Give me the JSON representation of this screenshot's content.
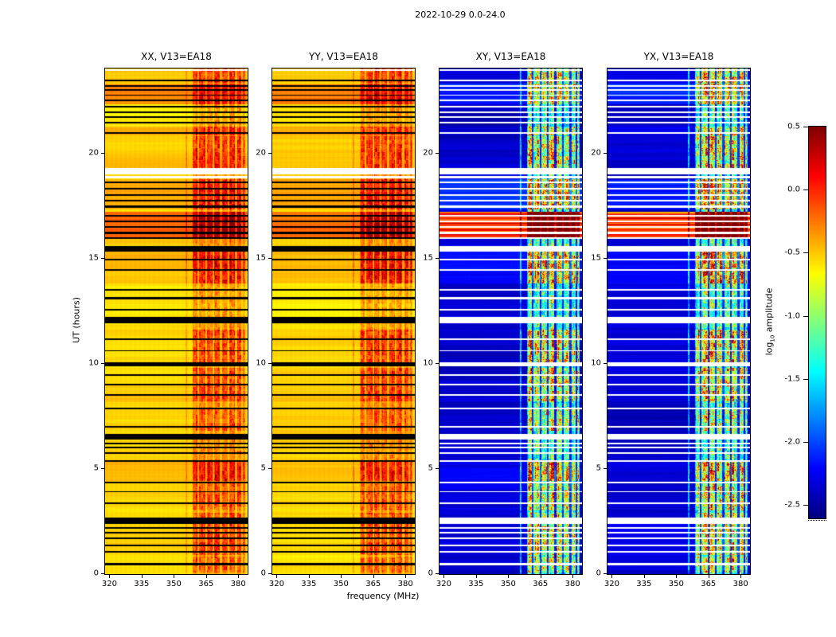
{
  "title": "2022-10-29 0.0-24.0",
  "axes": {
    "xlabel": "frequency (MHz)",
    "ylabel": "UT (hours)",
    "x_ticks": [
      "320",
      "335",
      "350",
      "365",
      "380"
    ],
    "x_tick_values": [
      320,
      335,
      350,
      365,
      380
    ],
    "y_ticks": [
      "0",
      "5",
      "10",
      "15",
      "20"
    ],
    "y_tick_values": [
      0,
      5,
      10,
      15,
      20
    ],
    "x_range": [
      318,
      384
    ],
    "y_range": [
      0,
      24
    ]
  },
  "colorbar": {
    "label_pre": "log",
    "label_sub": "10",
    "label_post": " amplitude",
    "tick_labels": [
      "0.5",
      "0.0",
      "-0.5",
      "-1.0",
      "-1.5",
      "-2.0",
      "-2.5"
    ],
    "tick_values": [
      0.5,
      0,
      -0.5,
      -1,
      -1.5,
      -2,
      -2.5
    ],
    "vmin": -2.6,
    "vmax": 0.5
  },
  "chart_data": {
    "type": "heatmap",
    "description": "Four dynamic spectra (UT hours vs frequency MHz) of log10 visibility amplitude for polarisation products XX, YY, XY, YX of V13=EA18 on 2022-10-29 0.0-24.0; jet colormap, RFI band near 358-383 MHz, many flagged time rows.",
    "x_axis": {
      "label": "frequency (MHz)",
      "range": [
        318,
        384
      ]
    },
    "y_axis": {
      "label": "UT (hours)",
      "range": [
        0,
        24
      ]
    },
    "value_axis": {
      "label": "log10 amplitude",
      "range": [
        -2.6,
        0.5
      ]
    },
    "panels": [
      {
        "title": "XX, V13=EA18",
        "pol": "XX",
        "kind": "parallel",
        "base_level": -0.56,
        "seed": 11
      },
      {
        "title": "YY, V13=EA18",
        "pol": "YY",
        "kind": "parallel",
        "base_level": -0.56,
        "seed": 23
      },
      {
        "title": "XY, V13=EA18",
        "pol": "XY",
        "kind": "cross",
        "base_level": -2.38,
        "seed": 37
      },
      {
        "title": "YX, V13=EA18",
        "pol": "YX",
        "kind": "cross",
        "base_level": -2.38,
        "seed": 51
      }
    ],
    "rfi_band": {
      "f0": 358.5,
      "f1": 383,
      "gap_centers": [
        361.3,
        364.8,
        368.3,
        371.8,
        375.3,
        378.8,
        381.5
      ],
      "gap_width": 0.9,
      "extra_line": 355.6
    },
    "events": [
      {
        "t0": 23.35,
        "t1": 24.0,
        "par_full": 0.1,
        "par_rfi": 0.3,
        "cross_full": 0.05,
        "cross_rfi": 1.2
      },
      {
        "t0": 22.3,
        "t1": 23.3,
        "par_full": 0.28,
        "par_rfi": 0.25,
        "cross_full": 0.28,
        "cross_rfi": 1.0
      },
      {
        "t0": 20.85,
        "t1": 21.25,
        "par_full": 0.15,
        "par_rfi": 0.25,
        "cross_full": 0.12,
        "cross_rfi": 1.0
      },
      {
        "t0": 19.3,
        "t1": 20.8,
        "par_full": 0.05,
        "par_rfi": 0.35,
        "cross_full": 0.04,
        "cross_rfi": 1.25
      },
      {
        "t0": 17.3,
        "t1": 18.75,
        "par_full": 0.12,
        "par_rfi": 0.35,
        "cross_full": 0.3,
        "cross_rfi": 1.35
      },
      {
        "t0": 15.9,
        "t1": 17.2,
        "par_full": 0.32,
        "par_rfi": 0.55,
        "cross_full": 2.3,
        "cross_rfi": 2.6
      },
      {
        "t0": 13.8,
        "t1": 15.3,
        "par_full": 0.1,
        "par_rfi": 0.45,
        "cross_full": 0.15,
        "cross_rfi": 1.65
      },
      {
        "t0": 10.0,
        "t1": 11.6,
        "par_full": 0.04,
        "par_rfi": 0.35,
        "cross_full": 0.06,
        "cross_rfi": 1.55
      },
      {
        "t0": 8.2,
        "t1": 9.8,
        "par_full": 0.04,
        "par_rfi": 0.3,
        "cross_full": 0.05,
        "cross_rfi": 1.25
      },
      {
        "t0": 6.8,
        "t1": 7.8,
        "par_full": 0.0,
        "par_rfi": 0.2,
        "cross_full": 0.02,
        "cross_rfi": 0.95
      },
      {
        "t0": 4.4,
        "t1": 5.3,
        "par_full": 0.06,
        "par_rfi": 0.4,
        "cross_full": 0.06,
        "cross_rfi": 1.5
      },
      {
        "t0": 3.0,
        "t1": 4.3,
        "par_full": 0.0,
        "par_rfi": 0.25,
        "cross_full": 0.02,
        "cross_rfi": 1.1
      },
      {
        "t0": 0.9,
        "t1": 2.9,
        "par_full": 0.05,
        "par_rfi": 0.3,
        "cross_full": 0.03,
        "cross_rfi": 1.05
      },
      {
        "t0": 0.05,
        "t1": 0.8,
        "par_full": 0.0,
        "par_rfi": 0.25,
        "cross_full": 0.02,
        "cross_rfi": 1.0
      }
    ],
    "flagged_rows": {
      "format": "[time_hours_center, width_hours]",
      "masked_black": [
        [
          0.45,
          0.1
        ],
        [
          1.05,
          0.07
        ],
        [
          1.35,
          0.07
        ],
        [
          1.68,
          0.07
        ],
        [
          1.95,
          0.07
        ],
        [
          2.18,
          0.07
        ],
        [
          2.5,
          0.3
        ],
        [
          3.35,
          0.07
        ],
        [
          3.9,
          0.07
        ],
        [
          4.35,
          0.07
        ],
        [
          5.35,
          0.1
        ],
        [
          5.75,
          0.08
        ],
        [
          6.0,
          0.08
        ],
        [
          6.2,
          0.08
        ],
        [
          6.5,
          0.26
        ],
        [
          7.0,
          0.07
        ],
        [
          7.85,
          0.1
        ],
        [
          8.5,
          0.08
        ],
        [
          9.0,
          0.08
        ],
        [
          9.45,
          0.08
        ],
        [
          9.95,
          0.2
        ],
        [
          10.6,
          0.07
        ],
        [
          11.15,
          0.07
        ],
        [
          12.05,
          0.3
        ],
        [
          12.55,
          0.08
        ],
        [
          13.1,
          0.1
        ],
        [
          13.5,
          0.1
        ],
        [
          14.45,
          0.08
        ],
        [
          14.95,
          0.08
        ],
        [
          15.45,
          0.24
        ],
        [
          15.95,
          0.08
        ],
        [
          16.2,
          0.08
        ],
        [
          16.5,
          0.08
        ],
        [
          16.75,
          0.08
        ],
        [
          17.0,
          0.08
        ],
        [
          17.45,
          0.08
        ],
        [
          17.75,
          0.08
        ],
        [
          18.0,
          0.08
        ],
        [
          18.3,
          0.08
        ],
        [
          18.6,
          0.08
        ],
        [
          20.95,
          0.06
        ],
        [
          21.45,
          0.07
        ],
        [
          21.7,
          0.07
        ],
        [
          21.95,
          0.07
        ],
        [
          22.2,
          0.07
        ],
        [
          22.5,
          0.07
        ],
        [
          22.75,
          0.07
        ],
        [
          23.0,
          0.07
        ],
        [
          23.2,
          0.07
        ],
        [
          23.45,
          0.07
        ]
      ],
      "masked_white": [
        [
          18.85,
          0.1
        ],
        [
          19.12,
          0.3
        ],
        [
          23.93,
          0.08
        ]
      ]
    }
  }
}
